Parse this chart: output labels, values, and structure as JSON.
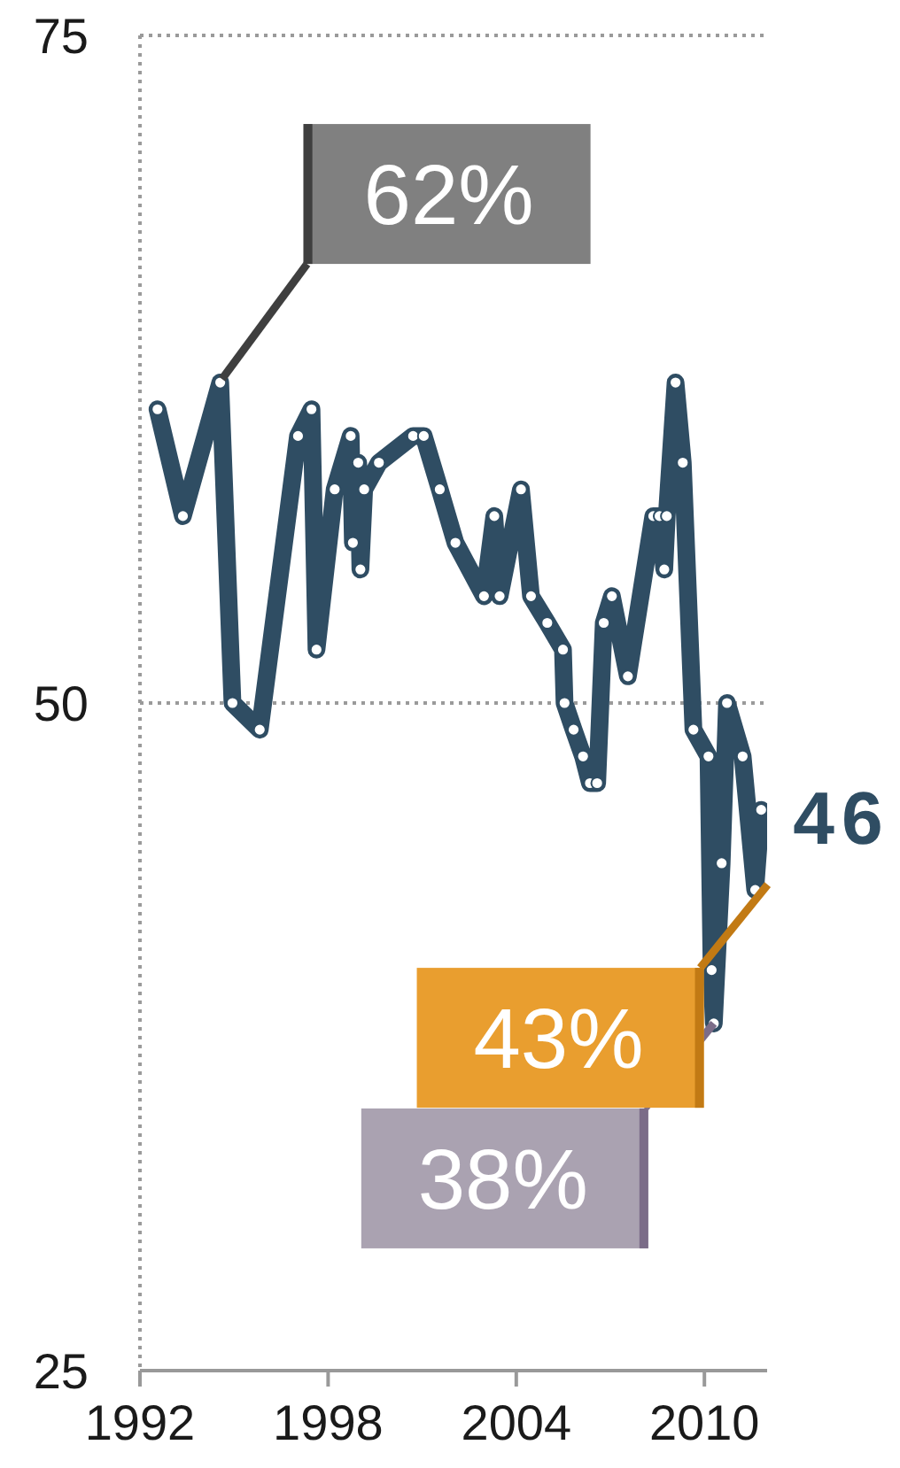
{
  "chart_data": {
    "type": "line",
    "x": [
      1992.56,
      1993.37,
      1994.56,
      1994.95,
      1995.82,
      1997.04,
      1997.47,
      1997.63,
      1998.21,
      1998.72,
      1998.79,
      1998.96,
      1999.03,
      1999.15,
      1999.62,
      2000.71,
      2001.05,
      2001.56,
      2002.06,
      2002.97,
      2003.3,
      2003.47,
      2004.15,
      2004.47,
      2004.99,
      2005.49,
      2005.54,
      2005.83,
      2006.13,
      2006.35,
      2006.58,
      2006.79,
      2007.05,
      2007.56,
      2008.37,
      2008.57,
      2008.72,
      2008.8,
      2009.08,
      2009.31,
      2009.65,
      2010.13,
      2010.23,
      2010.3,
      2010.55,
      2010.72,
      2011.22,
      2011.62,
      2011.81
    ],
    "values": [
      61,
      57,
      62,
      50,
      49,
      60,
      61,
      52,
      58,
      60,
      56,
      59,
      55,
      58,
      59,
      60,
      60,
      58,
      56,
      54,
      57,
      54,
      58,
      54,
      53,
      52,
      50,
      49,
      48,
      47,
      47,
      53,
      54,
      51,
      57,
      57,
      55,
      57,
      62,
      59,
      49,
      48,
      40,
      38,
      44,
      50,
      48,
      43,
      46
    ],
    "value_labels": [
      null,
      null,
      null,
      null,
      null,
      null,
      null,
      null,
      null,
      null,
      null,
      null,
      null,
      null,
      null,
      null,
      null,
      null,
      null,
      null,
      null,
      null,
      null,
      null,
      null,
      null,
      null,
      null,
      null,
      null,
      null,
      null,
      null,
      null,
      null,
      null,
      null,
      null,
      null,
      null,
      null,
      null,
      null,
      null,
      null,
      null,
      null,
      null,
      "46"
    ],
    "color": "#2f4d63",
    "xlim": [
      1992,
      2012
    ],
    "xticks": [
      1992,
      1998,
      2004,
      2010
    ],
    "ylim": [
      25,
      75
    ],
    "yticks": [
      25,
      50,
      75
    ],
    "grid": "y",
    "marker": "circle",
    "line_style": "solid",
    "annotations": [
      {
        "text": "62%",
        "x": 1994.56,
        "y": 62
      },
      {
        "text": "43%",
        "x": 2011.62,
        "y": 43
      },
      {
        "text": "38%",
        "x": 2010.3,
        "y": 38
      }
    ]
  }
}
